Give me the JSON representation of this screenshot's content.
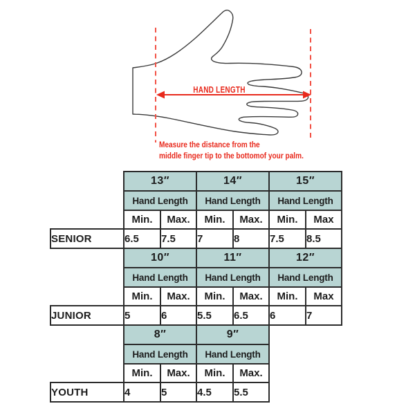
{
  "diagram": {
    "hand_length_label": "HAND LENGTH",
    "caption": {
      "line1": "Measure the distance from the",
      "line2": "middle finger tip to the bottomof your palm."
    }
  },
  "colors": {
    "red": "#e8291c",
    "dash_red": "#f25044",
    "teal": "#b8d5d3",
    "border": "#2b2b2b"
  },
  "size_table": {
    "blocks": [
      {
        "label": "SENIOR",
        "columns": [
          {
            "size": "13″",
            "group_label": "Hand Length",
            "min_header": "Min.",
            "max_header": "Max.",
            "min_value": "6.5",
            "max_value": "7.5"
          },
          {
            "size": "14″",
            "group_label": "Hand Length",
            "min_header": "Min.",
            "max_header": "Max.",
            "min_value": "7",
            "max_value": "8"
          },
          {
            "size": "15″",
            "group_label": "Hand Length",
            "min_header": "Min.",
            "max_header": "Max",
            "min_value": "7.5",
            "max_value": "8.5"
          }
        ]
      },
      {
        "label": "JUNIOR",
        "columns": [
          {
            "size": "10″",
            "group_label": "Hand Length",
            "min_header": "Min.",
            "max_header": "Max.",
            "min_value": "5",
            "max_value": "6"
          },
          {
            "size": "11″",
            "group_label": "Hand Length",
            "min_header": "Min.",
            "max_header": "Max.",
            "min_value": "5.5",
            "max_value": "6.5"
          },
          {
            "size": "12″",
            "group_label": "Hand Length",
            "min_header": "Min.",
            "max_header": "Max",
            "min_value": "6",
            "max_value": "7"
          }
        ]
      },
      {
        "label": "YOUTH",
        "columns": [
          {
            "size": "8″",
            "group_label": "Hand Length",
            "min_header": "Min.",
            "max_header": "Max.",
            "min_value": "4",
            "max_value": "5"
          },
          {
            "size": "9″",
            "group_label": "Hand Length",
            "min_header": "Min.",
            "max_header": "Max.",
            "min_value": "4.5",
            "max_value": "5.5"
          }
        ]
      }
    ]
  }
}
